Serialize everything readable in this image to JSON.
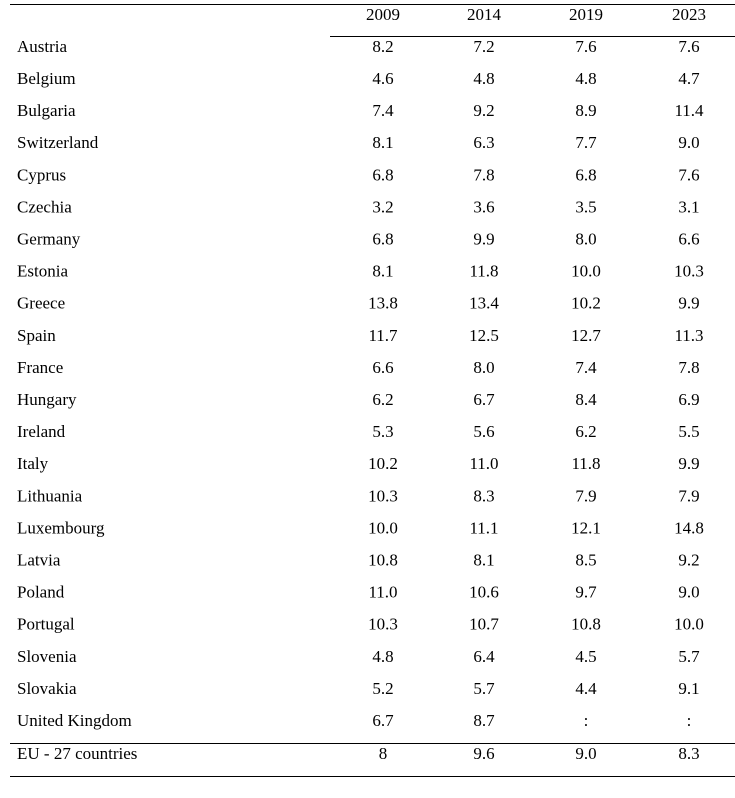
{
  "table": {
    "header": [
      "2009",
      "2014",
      "2019",
      "2023"
    ],
    "rows": [
      [
        "Austria",
        "8.2",
        "7.2",
        "7.6",
        "7.6"
      ],
      [
        "Belgium",
        "4.6",
        "4.8",
        "4.8",
        "4.7"
      ],
      [
        "Bulgaria",
        "7.4",
        "9.2",
        "8.9",
        "11.4"
      ],
      [
        "Switzerland",
        "8.1",
        "6.3",
        "7.7",
        "9.0"
      ],
      [
        "Cyprus",
        "6.8",
        "7.8",
        "6.8",
        "7.6"
      ],
      [
        "Czechia",
        "3.2",
        "3.6",
        "3.5",
        "3.1"
      ],
      [
        "Germany",
        "6.8",
        "9.9",
        "8.0",
        "6.6"
      ],
      [
        "Estonia",
        "8.1",
        "11.8",
        "10.0",
        "10.3"
      ],
      [
        "Greece",
        "13.8",
        "13.4",
        "10.2",
        "9.9"
      ],
      [
        "Spain",
        "11.7",
        "12.5",
        "12.7",
        "11.3"
      ],
      [
        "France",
        "6.6",
        "8.0",
        "7.4",
        "7.8"
      ],
      [
        "Hungary",
        "6.2",
        "6.7",
        "8.4",
        "6.9"
      ],
      [
        "Ireland",
        "5.3",
        "5.6",
        "6.2",
        "5.5"
      ],
      [
        "Italy",
        "10.2",
        "11.0",
        "11.8",
        "9.9"
      ],
      [
        "Lithuania",
        "10.3",
        "8.3",
        "7.9",
        "7.9"
      ],
      [
        "Luxembourg",
        "10.0",
        "11.1",
        "12.1",
        "14.8"
      ],
      [
        "Latvia",
        "10.8",
        "8.1",
        "8.5",
        "9.2"
      ],
      [
        "Poland",
        "11.0",
        "10.6",
        "9.7",
        "9.0"
      ],
      [
        "Portugal",
        "10.3",
        "10.7",
        "10.8",
        "10.0"
      ],
      [
        "Slovenia",
        "4.8",
        "6.4",
        "4.5",
        "5.7"
      ],
      [
        "Slovakia",
        "5.2",
        "5.7",
        "4.4",
        "9.1"
      ],
      [
        "United Kingdom",
        "6.7",
        "8.7",
        ":",
        ":"
      ]
    ],
    "footer": [
      "EU - 27 countries",
      "8",
      "9.6",
      "9.0",
      "8.3"
    ]
  }
}
